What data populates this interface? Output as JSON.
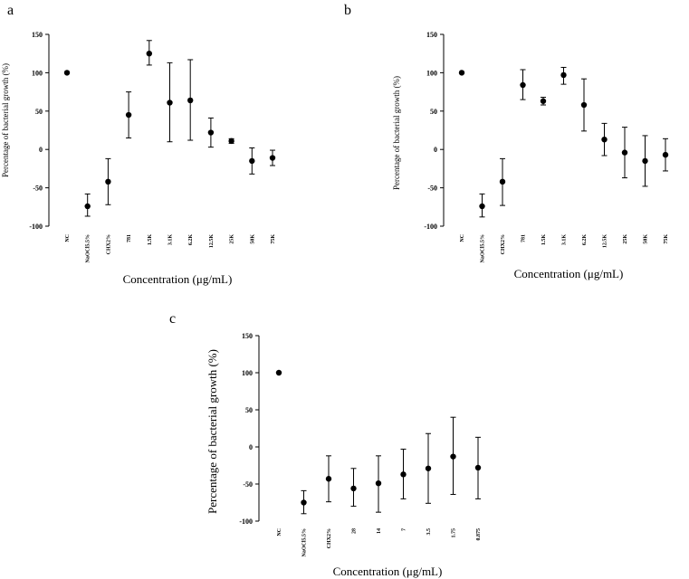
{
  "chart_data": [
    {
      "type": "scatter",
      "panel_label": "a",
      "categories": [
        "NC",
        "NaOCl5.5%",
        "CHX2%",
        "781",
        "1.5K",
        "3.1K",
        "6.2K",
        "12.5K",
        "25K",
        "50K",
        "75K"
      ],
      "values": [
        100,
        -74,
        -42,
        45,
        125,
        61,
        64,
        22,
        11,
        -15,
        -11
      ],
      "error_low": [
        100,
        -87,
        -72,
        15,
        110,
        10,
        12,
        3,
        8,
        -32,
        -21
      ],
      "error_high": [
        100,
        -58,
        -12,
        75,
        142,
        113,
        117,
        41,
        14,
        2,
        -1
      ],
      "ylim": [
        -100,
        150
      ],
      "yticks": [
        "-100",
        "-50",
        "0",
        "50",
        "100",
        "150"
      ],
      "xlabel": "Concentration (μg/mL)",
      "ylabel": "Percentage of bacterial growth (%)"
    },
    {
      "type": "scatter",
      "panel_label": "b",
      "categories": [
        "NC",
        "NaOCl5.5%",
        "CHX2%",
        "781",
        "1.5K",
        "3.1K",
        "6.2K",
        "12.5K",
        "25K",
        "50K",
        "75K"
      ],
      "values": [
        100,
        -74,
        -42,
        84,
        63,
        97,
        58,
        13,
        -4,
        -15,
        -7
      ],
      "error_low": [
        100,
        -88,
        -73,
        65,
        58,
        85,
        24,
        -8,
        -37,
        -48,
        -28
      ],
      "error_high": [
        100,
        -58,
        -12,
        104,
        68,
        107,
        92,
        34,
        29,
        18,
        14
      ],
      "ylim": [
        -100,
        150
      ],
      "yticks": [
        "-100",
        "-50",
        "0",
        "50",
        "100",
        "150"
      ],
      "xlabel": "Concentration (μg/mL)",
      "ylabel": "Percentage of bacterial growth (%)"
    },
    {
      "type": "scatter",
      "panel_label": "c",
      "categories": [
        "NC",
        "NaOCl5.5%",
        "CHX2%",
        "28",
        "14",
        "7",
        "3.5",
        "1.75",
        "0.875"
      ],
      "values": [
        100,
        -75,
        -43,
        -56,
        -49,
        -37,
        -29,
        -13,
        -28
      ],
      "error_low": [
        100,
        -90,
        -74,
        -80,
        -88,
        -70,
        -76,
        -64,
        -70
      ],
      "error_high": [
        100,
        -59,
        -12,
        -29,
        -12,
        -3,
        18,
        40,
        13
      ],
      "ylim": [
        -100,
        150
      ],
      "yticks": [
        "-100",
        "-50",
        "0",
        "50",
        "100",
        "150"
      ],
      "xlabel": "Concentration (μg/mL)",
      "ylabel": "Percentage of bacterial growth (%)"
    }
  ]
}
